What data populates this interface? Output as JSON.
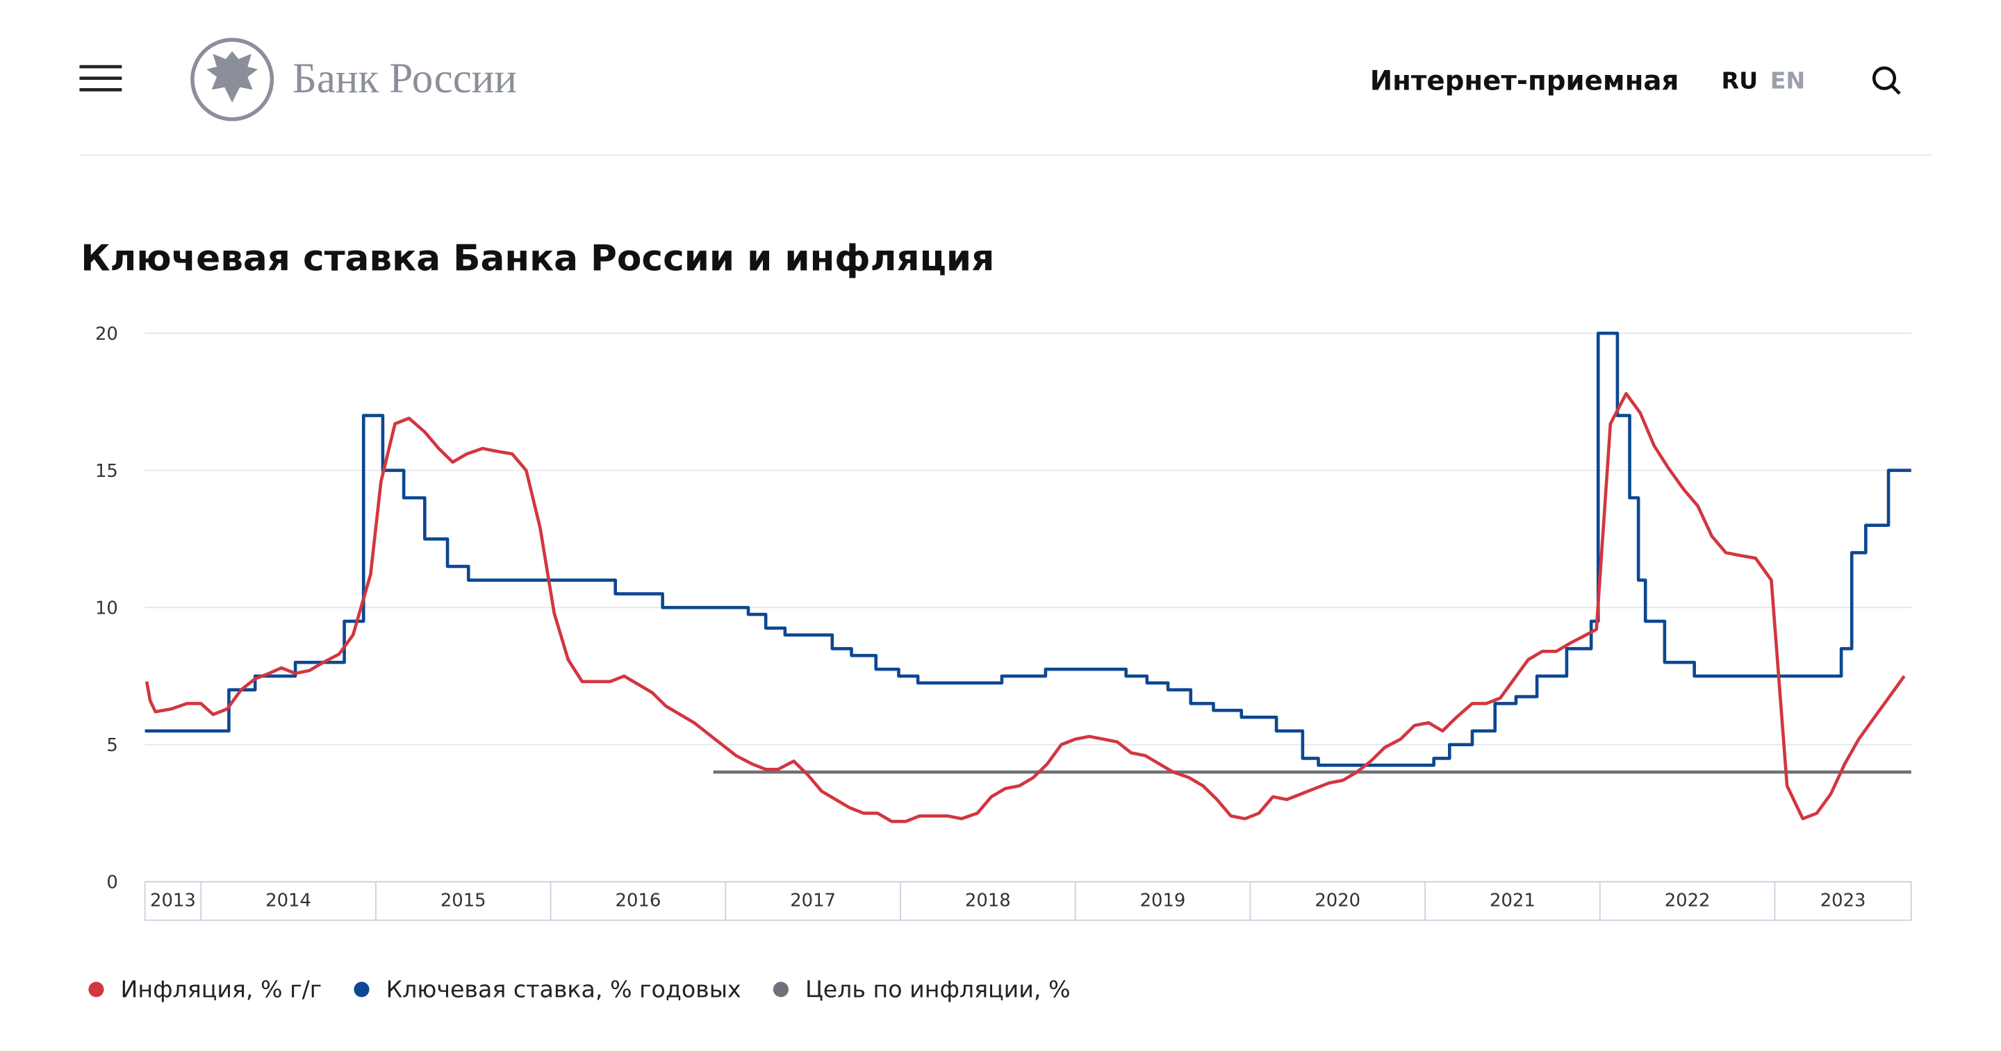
{
  "header": {
    "logo": "Банк России",
    "reception": "Интернет-приемная",
    "lang_ru": "RU",
    "lang_en": "EN"
  },
  "chart_data": {
    "type": "line",
    "title": "Ключевая ставка Банка России и инфляция",
    "xlim": [
      2013.68,
      2023.78
    ],
    "xticks": [
      2014,
      2015,
      2016,
      2017,
      2018,
      2019,
      2020,
      2021,
      2022,
      2023
    ],
    "x_labels": [
      "2013",
      "2014",
      "2015",
      "2016",
      "2017",
      "2018",
      "2019",
      "2020",
      "2021",
      "2022",
      "2023"
    ],
    "ylim": [
      0,
      20
    ],
    "yticks": [
      0,
      5,
      10,
      15,
      20
    ],
    "grid": true,
    "series": [
      {
        "name": "Инфляция, % г/г",
        "color": "#d2363f",
        "x": [
          2013.69,
          2013.71,
          2013.74,
          2013.83,
          2013.92,
          2014.0,
          2014.07,
          2014.15,
          2014.23,
          2014.31,
          2014.39,
          2014.46,
          2014.54,
          2014.62,
          2014.7,
          2014.79,
          2014.87,
          2014.97,
          2015.03,
          2015.11,
          2015.19,
          2015.28,
          2015.36,
          2015.44,
          2015.52,
          2015.61,
          2015.69,
          2015.78,
          2015.86,
          2015.94,
          2016.02,
          2016.1,
          2016.18,
          2016.26,
          2016.34,
          2016.42,
          2016.5,
          2016.58,
          2016.66,
          2016.74,
          2016.82,
          2016.9,
          2016.98,
          2017.06,
          2017.15,
          2017.23,
          2017.3,
          2017.39,
          2017.47,
          2017.55,
          2017.63,
          2017.71,
          2017.79,
          2017.87,
          2017.95,
          2018.03,
          2018.11,
          2018.19,
          2018.27,
          2018.35,
          2018.44,
          2018.52,
          2018.6,
          2018.68,
          2018.76,
          2018.84,
          2018.92,
          2019.0,
          2019.08,
          2019.16,
          2019.24,
          2019.32,
          2019.4,
          2019.48,
          2019.56,
          2019.65,
          2019.73,
          2019.81,
          2019.89,
          2019.97,
          2020.05,
          2020.13,
          2020.21,
          2020.29,
          2020.37,
          2020.45,
          2020.53,
          2020.61,
          2020.69,
          2020.77,
          2020.86,
          2020.94,
          2021.02,
          2021.1,
          2021.18,
          2021.27,
          2021.35,
          2021.43,
          2021.51,
          2021.59,
          2021.67,
          2021.75,
          2021.83,
          2021.98,
          2022.06,
          2022.15,
          2022.23,
          2022.31,
          2022.39,
          2022.48,
          2022.56,
          2022.64,
          2022.72,
          2022.8,
          2022.89,
          2022.98,
          2023.07,
          2023.16,
          2023.24,
          2023.32,
          2023.4,
          2023.48,
          2023.57,
          2023.65,
          2023.74
        ],
        "values": [
          7.3,
          6.6,
          6.2,
          6.3,
          6.5,
          6.5,
          6.1,
          6.3,
          7.0,
          7.4,
          7.6,
          7.8,
          7.6,
          7.7,
          8.0,
          8.3,
          9.0,
          11.2,
          14.6,
          16.7,
          16.9,
          16.4,
          15.8,
          15.3,
          15.6,
          15.8,
          15.7,
          15.6,
          15.0,
          12.9,
          9.8,
          8.1,
          7.3,
          7.3,
          7.3,
          7.5,
          7.2,
          6.9,
          6.4,
          6.1,
          5.8,
          5.4,
          5.0,
          4.6,
          4.3,
          4.1,
          4.1,
          4.4,
          3.9,
          3.3,
          3.0,
          2.7,
          2.5,
          2.5,
          2.2,
          2.2,
          2.4,
          2.4,
          2.4,
          2.3,
          2.5,
          3.1,
          3.4,
          3.5,
          3.8,
          4.3,
          5.0,
          5.2,
          5.3,
          5.2,
          5.1,
          4.7,
          4.6,
          4.3,
          4.0,
          3.8,
          3.5,
          3.0,
          2.4,
          2.3,
          2.5,
          3.1,
          3.0,
          3.2,
          3.4,
          3.6,
          3.7,
          4.0,
          4.4,
          4.9,
          5.2,
          5.7,
          5.8,
          5.5,
          6.0,
          6.5,
          6.5,
          6.7,
          7.4,
          8.1,
          8.4,
          8.4,
          8.7,
          9.2,
          16.7,
          17.8,
          17.1,
          15.9,
          15.1,
          14.3,
          13.7,
          12.6,
          12.0,
          11.9,
          11.8,
          11.0,
          3.5,
          2.3,
          2.5,
          3.2,
          4.3,
          5.2,
          6.0,
          6.7,
          7.5
        ]
      },
      {
        "name": "Ключевая ставка, % годовых",
        "color": "#0c4792",
        "step": true,
        "x": [
          2013.68,
          2014.16,
          2014.31,
          2014.54,
          2014.82,
          2014.93,
          2015.04,
          2015.16,
          2015.28,
          2015.41,
          2015.53,
          2016.37,
          2016.64,
          2017.13,
          2017.23,
          2017.34,
          2017.61,
          2017.72,
          2017.86,
          2017.99,
          2018.1,
          2018.58,
          2018.83,
          2019.29,
          2019.41,
          2019.53,
          2019.66,
          2019.79,
          2019.95,
          2020.15,
          2020.3,
          2020.39,
          2021.05,
          2021.14,
          2021.27,
          2021.4,
          2021.52,
          2021.64,
          2021.81,
          2021.95,
          2021.99,
          2022.1,
          2022.17,
          2022.22,
          2022.26,
          2022.37,
          2022.54,
          2023.38,
          2023.44,
          2023.52,
          2023.65,
          2023.78
        ],
        "values": [
          5.5,
          7.0,
          7.5,
          8.0,
          9.5,
          17,
          15,
          14,
          12.5,
          11.5,
          11,
          10.5,
          10,
          9.75,
          9.25,
          9.0,
          8.5,
          8.25,
          7.75,
          7.5,
          7.25,
          7.5,
          7.75,
          7.5,
          7.25,
          7.0,
          6.5,
          6.25,
          6.0,
          5.5,
          4.5,
          4.25,
          4.5,
          5.0,
          5.5,
          6.5,
          6.75,
          7.5,
          8.5,
          9.5,
          20,
          17,
          14,
          11,
          9.5,
          8.0,
          7.5,
          8.5,
          12,
          13,
          15,
          15
        ]
      },
      {
        "name": "Цель по инфляции, %",
        "color": "#6e7179",
        "x": [
          2016.93,
          2023.78
        ],
        "values": [
          4,
          4
        ]
      }
    ]
  }
}
